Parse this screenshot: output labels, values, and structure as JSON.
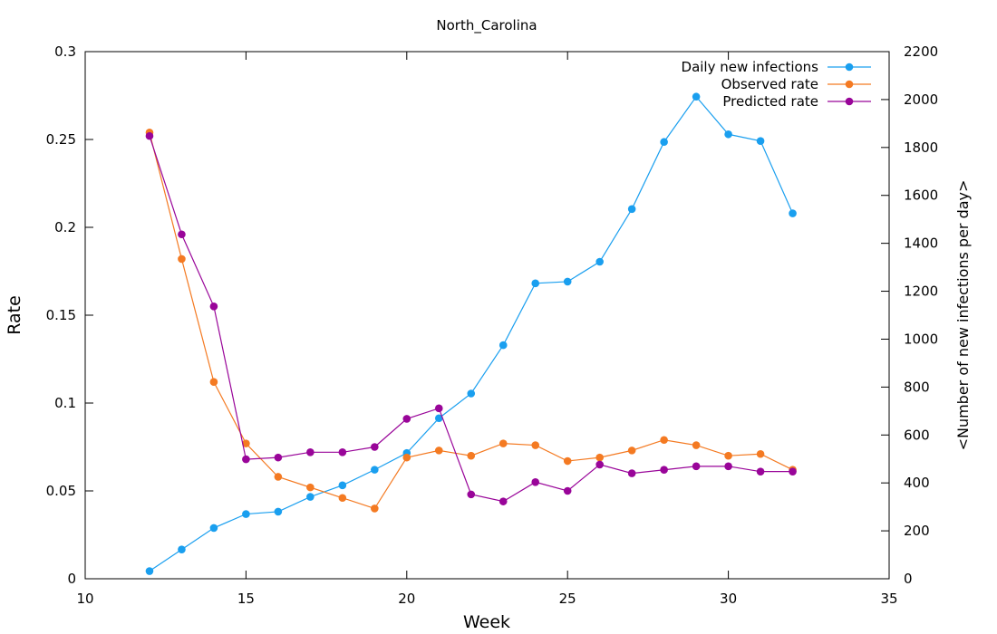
{
  "chart_data": {
    "type": "line",
    "title": "North_Carolina",
    "xlabel": "Week",
    "ylabel": "Rate",
    "y2label": "<Number of new infections per day>",
    "xlim": [
      10,
      35
    ],
    "ylim": [
      0,
      0.3
    ],
    "y2lim": [
      0,
      2200
    ],
    "x_ticks": [
      "10",
      "15",
      "20",
      "25",
      "30",
      "35"
    ],
    "y_ticks": [
      "0",
      "0.05",
      "0.1",
      "0.15",
      "0.2",
      "0.25",
      "0.3"
    ],
    "y2_ticks": [
      "0",
      "200",
      "400",
      "600",
      "800",
      "1000",
      "1200",
      "1400",
      "1600",
      "1800",
      "2000",
      "2200"
    ],
    "grid": false,
    "legend_position": "top-right",
    "x": [
      12,
      13,
      14,
      15,
      16,
      17,
      18,
      19,
      20,
      21,
      22,
      23,
      24,
      25,
      26,
      27,
      28,
      29,
      30,
      31,
      32
    ],
    "series": [
      {
        "name": "Daily new infections",
        "axis": "y2",
        "color": "#1a9fef",
        "values": [
          32,
          122,
          212,
          270,
          280,
          342,
          390,
          455,
          525,
          670,
          773,
          975,
          1233,
          1240,
          1323,
          1543,
          1823,
          2012,
          1855,
          1827,
          1525
        ]
      },
      {
        "name": "Observed rate",
        "axis": "y",
        "color": "#f47a22",
        "values": [
          0.254,
          0.182,
          0.112,
          0.077,
          0.058,
          0.052,
          0.046,
          0.04,
          0.069,
          0.073,
          0.07,
          0.077,
          0.076,
          0.067,
          0.069,
          0.073,
          0.079,
          0.076,
          0.07,
          0.071,
          0.062
        ]
      },
      {
        "name": "Predicted rate",
        "axis": "y",
        "color": "#990599",
        "values": [
          0.252,
          0.196,
          0.155,
          0.068,
          0.069,
          0.072,
          0.072,
          0.075,
          0.091,
          0.097,
          0.048,
          0.044,
          0.055,
          0.05,
          0.065,
          0.06,
          0.062,
          0.064,
          0.064,
          0.061,
          0.061
        ]
      }
    ]
  }
}
